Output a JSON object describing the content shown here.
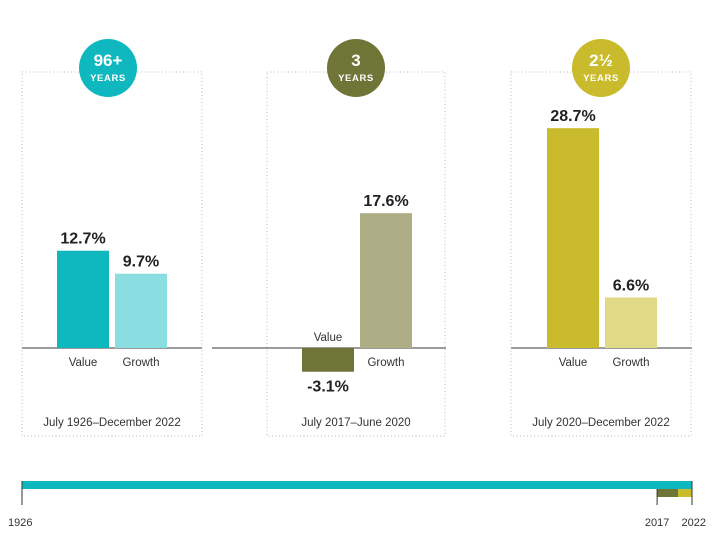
{
  "chart_data": {
    "type": "bar",
    "unit": "%",
    "categories": [
      "Value",
      "Growth"
    ],
    "panels": [
      {
        "badge_value": "96+",
        "badge_unit": "YEARS",
        "badge_color": "#0fb8bf",
        "period": "July 1926–December 2022",
        "series": [
          {
            "category": "Value",
            "value": 12.7,
            "label": "12.7%",
            "color": "#0fb8bf"
          },
          {
            "category": "Growth",
            "value": 9.7,
            "label": "9.7%",
            "color": "#8adde0"
          }
        ]
      },
      {
        "badge_value": "3",
        "badge_unit": "YEARS",
        "badge_color": "#6e7537",
        "period": "July 2017–June 2020",
        "series": [
          {
            "category": "Value",
            "value": -3.1,
            "label": "-3.1%",
            "color": "#6e7537"
          },
          {
            "category": "Growth",
            "value": 17.6,
            "label": "17.6%",
            "color": "#aeae86"
          }
        ]
      },
      {
        "badge_value": "2½",
        "badge_unit": "YEARS",
        "badge_color": "#c9bb2b",
        "period": "July 2020–December 2022",
        "series": [
          {
            "category": "Value",
            "value": 28.7,
            "label": "28.7%",
            "color": "#c9bb2b"
          },
          {
            "category": "Growth",
            "value": 6.6,
            "label": "6.6%",
            "color": "#e0d985"
          }
        ]
      }
    ],
    "timeline": {
      "start_year": 1926,
      "end_year": 2022,
      "labels": [
        "1926",
        "2017",
        "2022"
      ],
      "segments": [
        {
          "from": 1926,
          "to": 2022,
          "color": "#0fb8bf"
        },
        {
          "from": 2017,
          "to": 2020,
          "color": "#6e7537"
        },
        {
          "from": 2020,
          "to": 2022,
          "color": "#c9bb2b"
        }
      ]
    }
  }
}
